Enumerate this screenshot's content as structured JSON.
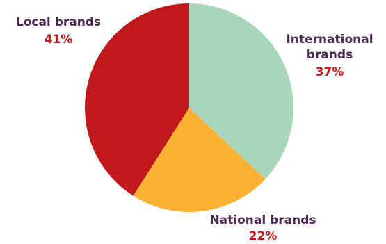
{
  "chart_data": {
    "type": "pie",
    "start": "12 o'clock",
    "direction": "clockwise",
    "legend": "none (direct labels)",
    "slices": [
      {
        "label_lines": [
          "International",
          "brands"
        ],
        "value": 37,
        "value_label": "37%",
        "color": "#a8d5bb"
      },
      {
        "label_lines": [
          "National brands"
        ],
        "value": 22,
        "value_label": "22%",
        "color": "#f9b233"
      },
      {
        "label_lines": [
          "Local brands"
        ],
        "value": 41,
        "value_label": "41%",
        "color": "#c1181b"
      }
    ],
    "label_color": "#4a2a4f",
    "value_color": "#c1181b"
  }
}
